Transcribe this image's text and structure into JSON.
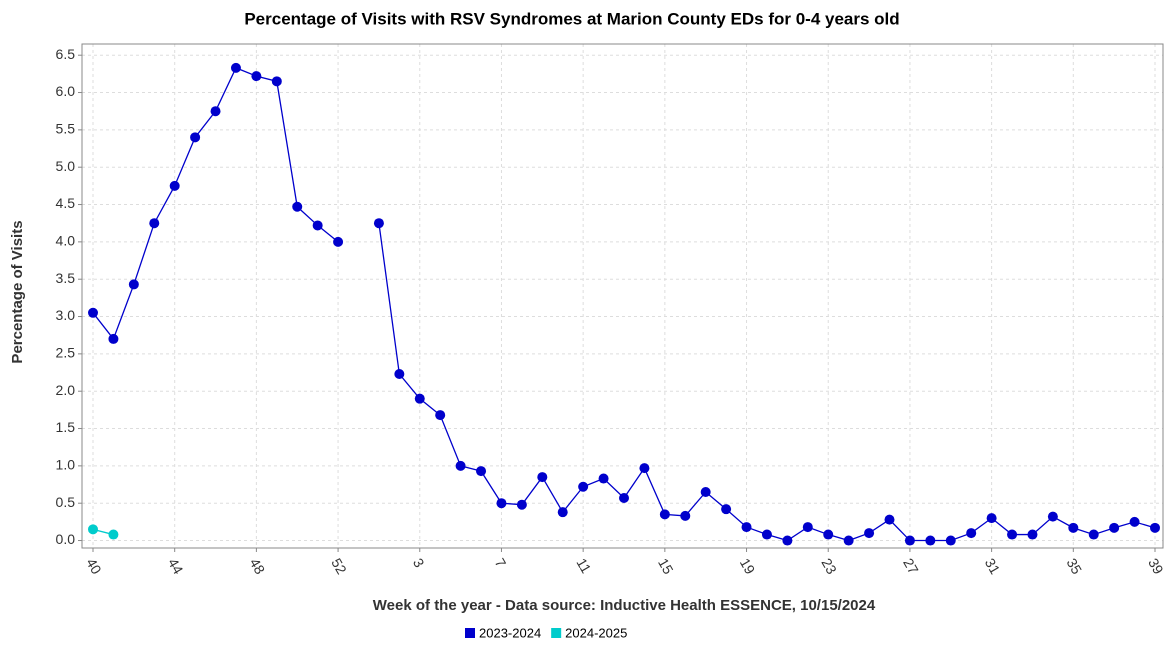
{
  "chart_data": {
    "type": "line",
    "title": "Percentage of Visits with RSV Syndromes at Marion County EDs for 0-4 years old",
    "x_label": "Week of the year - Data source: Inductive Health ESSENCE, 10/15/2024",
    "y_label": "Percentage of Visits",
    "categories": [
      "40",
      null,
      null,
      null,
      "44",
      null,
      null,
      null,
      "48",
      null,
      null,
      null,
      "52",
      null,
      null,
      null,
      "3",
      null,
      null,
      null,
      "7",
      null,
      null,
      null,
      "11",
      null,
      null,
      null,
      "15",
      null,
      null,
      null,
      "19",
      null,
      null,
      null,
      "23",
      null,
      null,
      null,
      "27",
      null,
      null,
      null,
      "31",
      null,
      null,
      null,
      "35",
      null,
      null,
      null,
      "39"
    ],
    "series": [
      {
        "name": "2023-2024",
        "color": "#0000cc",
        "values": [
          3.05,
          2.7,
          3.43,
          4.25,
          4.75,
          5.4,
          5.75,
          6.33,
          6.22,
          6.15,
          4.47,
          4.22,
          4.0,
          null,
          4.25,
          2.23,
          1.9,
          1.68,
          1.0,
          0.93,
          0.5,
          0.48,
          0.85,
          0.38,
          0.72,
          0.83,
          0.57,
          0.97,
          0.35,
          0.33,
          0.65,
          0.42,
          0.18,
          0.08,
          0.0,
          0.18,
          0.08,
          0.0,
          0.1,
          0.28,
          0.0,
          0.0,
          0.0,
          0.1,
          0.3,
          0.08,
          0.08,
          0.32,
          0.17,
          0.08,
          0.17,
          0.25,
          0.17
        ]
      },
      {
        "name": "2024-2025",
        "color": "#00cccc",
        "values": [
          0.15,
          0.08,
          null,
          null,
          null,
          null,
          null,
          null,
          null,
          null,
          null,
          null,
          null,
          null,
          null,
          null,
          null,
          null,
          null,
          null,
          null,
          null,
          null,
          null,
          null,
          null,
          null,
          null,
          null,
          null,
          null,
          null,
          null,
          null,
          null,
          null,
          null,
          null,
          null,
          null,
          null,
          null,
          null,
          null,
          null,
          null,
          null,
          null,
          null,
          null,
          null,
          null,
          null
        ]
      }
    ],
    "ylim": [
      -0.1,
      6.65
    ],
    "yticks": [
      {
        "value": 0,
        "label": "0.0"
      },
      0.5,
      {
        "value": 1,
        "label": "1.0"
      },
      1.5,
      {
        "value": 2,
        "label": "2.0"
      },
      2.5,
      {
        "value": 3,
        "label": "3.0"
      },
      3.5,
      {
        "value": 4,
        "label": "4.0"
      },
      4.5,
      {
        "value": 5,
        "label": "5.0"
      },
      5.5,
      {
        "value": 6,
        "label": "6.0"
      },
      6.5
    ],
    "grid": true
  }
}
